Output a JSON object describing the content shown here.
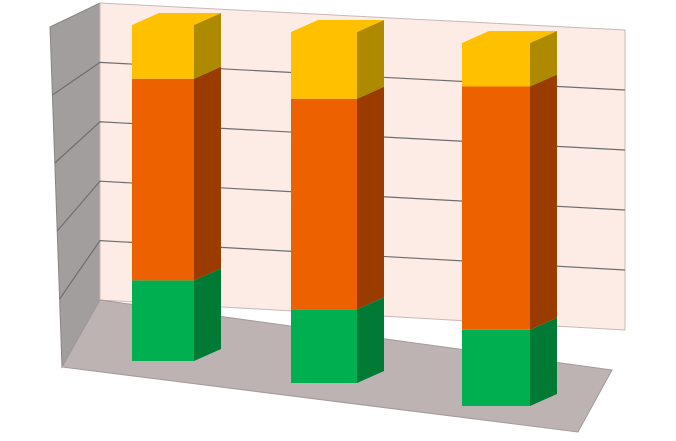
{
  "chart_data": {
    "type": "bar",
    "stacked": true,
    "style": "3d-column",
    "categories": [
      "",
      "",
      ""
    ],
    "series": [
      {
        "values": [
          0.24,
          0.21,
          0.21
        ],
        "color": "#00b050",
        "side_color": "#007a34"
      },
      {
        "values": [
          0.6,
          0.6,
          0.67
        ],
        "color": "#ed6100",
        "side_color": "#9a3c00"
      },
      {
        "values": [
          0.16,
          0.19,
          0.12
        ],
        "color": "#ffc000",
        "side_color": "#ad8a00"
      }
    ],
    "ylim": [
      0,
      1
    ],
    "grid": true,
    "legend": "none",
    "colors": {
      "back_wall": "#fdebe6",
      "side_wall": "#a39e9e",
      "floor": "#bdb3b3",
      "gridline": "#6e6e6e"
    }
  }
}
